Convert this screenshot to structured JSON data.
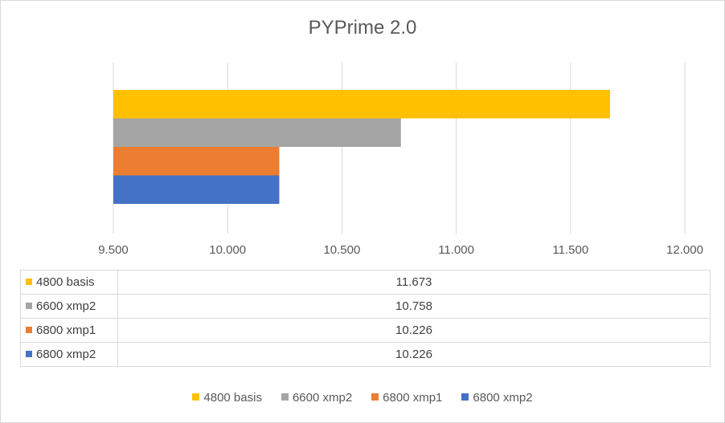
{
  "chart_data": {
    "type": "bar",
    "orientation": "horizontal",
    "title": "PYPrime 2.0",
    "xlim": [
      9.5,
      12.0
    ],
    "ticks": [
      "9.500",
      "10.000",
      "10.500",
      "11.000",
      "11.500",
      "12.000"
    ],
    "tick_values": [
      9.5,
      10.0,
      10.5,
      11.0,
      11.5,
      12.0
    ],
    "grid": true,
    "legend_position": "bottom",
    "series": [
      {
        "name": "4800 basis",
        "value": 11.673,
        "display": "11.673",
        "color": "#FFC000"
      },
      {
        "name": "6600 xmp2",
        "value": 10.758,
        "display": "10.758",
        "color": "#A5A5A5"
      },
      {
        "name": "6800 xmp1",
        "value": 10.226,
        "display": "10.226",
        "color": "#ED7D31"
      },
      {
        "name": "6800 xmp2",
        "value": 10.226,
        "display": "10.226",
        "color": "#4472C4"
      }
    ],
    "data_table": true
  }
}
